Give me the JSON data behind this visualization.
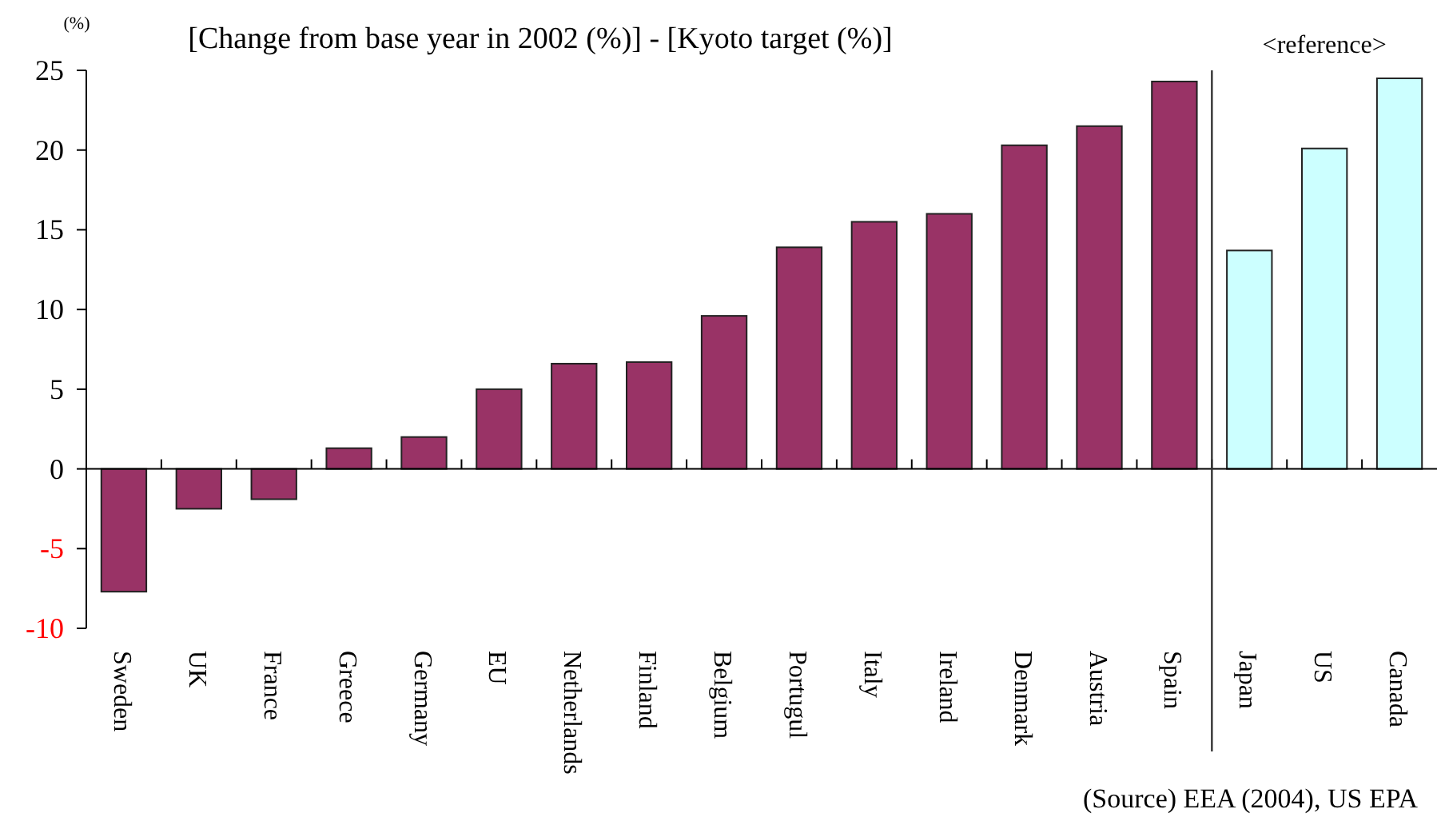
{
  "chart_data": {
    "type": "bar",
    "title": "[Change from base year in 2002 (%)] - [Kyoto target (%)]",
    "ylabel": "(%)",
    "categories": [
      "Sweden",
      "UK",
      "France",
      "Greece",
      "Germany",
      "EU",
      "Netherlands",
      "Finland",
      "Belgium",
      "Portugul",
      "Italy",
      "Ireland",
      "Denmark",
      "Austria",
      "Spain",
      "Japan",
      "US",
      "Canada"
    ],
    "values": [
      -7.7,
      -2.5,
      -1.9,
      1.3,
      2.0,
      5.0,
      6.6,
      6.7,
      9.6,
      13.9,
      15.5,
      16.0,
      20.3,
      21.5,
      24.3,
      13.7,
      20.1,
      24.5
    ],
    "colors": [
      "#993366",
      "#993366",
      "#993366",
      "#993366",
      "#993366",
      "#993366",
      "#993366",
      "#993366",
      "#993366",
      "#993366",
      "#993366",
      "#993366",
      "#993366",
      "#993366",
      "#993366",
      "#ccffff",
      "#ccffff",
      "#ccffff"
    ],
    "ylim": [
      -10,
      25
    ],
    "yticks": [
      -10,
      -5,
      0,
      5,
      10,
      15,
      20,
      25
    ],
    "ref_lines": [
      {
        "axis": "x",
        "value": "Japan",
        "label": "<reference>",
        "color": "#333333"
      }
    ],
    "annotations": [
      "(Source) EEA (2004), US EPA"
    ]
  }
}
